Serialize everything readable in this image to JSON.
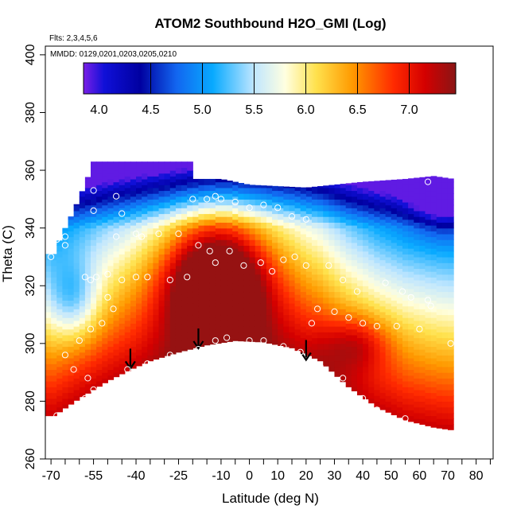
{
  "chart_data": {
    "type": "heatmap",
    "title": "ATOM2 Southbound H2O_GMI (Log)",
    "flights_note": "Flts: 2,3,4,5,6",
    "dates_note": "MMDD: 0129,0201,0203,0205,0210",
    "xlabel": "Latitude (deg N)",
    "ylabel": "Theta (C)",
    "xlim": [
      -72,
      86
    ],
    "ylim": [
      260,
      403
    ],
    "x_ticks_major": [
      -70,
      -55,
      -40,
      -25,
      -10,
      0,
      10,
      20,
      30,
      40,
      50,
      60,
      70,
      80
    ],
    "x_tick_labels": [
      "-70",
      "-55",
      "-40",
      "-25",
      "-10",
      "0",
      "10",
      "20",
      "30",
      "40",
      "50",
      "60",
      "70",
      "80"
    ],
    "x_ticks_minor": [
      -65,
      -60,
      -50,
      -45,
      -35,
      -30,
      -20,
      -15,
      -5,
      5,
      15,
      25,
      35,
      45,
      55,
      65,
      75,
      85
    ],
    "y_ticks": [
      260,
      280,
      300,
      320,
      340,
      360,
      380,
      400
    ],
    "y_tick_labels": [
      "260",
      "280",
      "300",
      "320",
      "340",
      "360",
      "380",
      "400"
    ],
    "colorbar": {
      "range": [
        3.85,
        7.45
      ],
      "ticks": [
        4.0,
        4.5,
        5.0,
        5.5,
        6.0,
        6.5,
        7.0
      ],
      "tick_labels": [
        "4.0",
        "4.5",
        "5.0",
        "5.5",
        "6.0",
        "6.5",
        "7.0"
      ],
      "divider_values": [
        4.5,
        5.0,
        5.5,
        6.0,
        6.5,
        7.0
      ],
      "color_stops": [
        {
          "v": 3.85,
          "c": "#7a1fe6"
        },
        {
          "v": 4.05,
          "c": "#1010d8"
        },
        {
          "v": 4.4,
          "c": "#0000a0"
        },
        {
          "v": 4.75,
          "c": "#1266f0"
        },
        {
          "v": 5.1,
          "c": "#08aaff"
        },
        {
          "v": 5.5,
          "c": "#bfe6ff"
        },
        {
          "v": 5.8,
          "c": "#ffffe0"
        },
        {
          "v": 6.1,
          "c": "#ffe14d"
        },
        {
          "v": 6.45,
          "c": "#ff9a00"
        },
        {
          "v": 6.85,
          "c": "#ff2a00"
        },
        {
          "v": 7.15,
          "c": "#d40000"
        },
        {
          "v": 7.45,
          "c": "#8a1515"
        }
      ]
    },
    "data_region": {
      "lat_extent": [
        -72,
        72
      ],
      "bottom_boundary": [
        [
          -69,
          275
        ],
        [
          -60,
          281
        ],
        [
          -50,
          287
        ],
        [
          -42,
          291
        ],
        [
          -35,
          294
        ],
        [
          -25,
          297
        ],
        [
          -15,
          299.5
        ],
        [
          -5,
          301
        ],
        [
          5,
          300.5
        ],
        [
          15,
          298.5
        ],
        [
          25,
          294
        ],
        [
          35,
          285
        ],
        [
          45,
          278
        ],
        [
          55,
          273.5
        ],
        [
          65,
          271
        ],
        [
          72,
          270
        ]
      ],
      "top_boundary": [
        [
          -69,
          331
        ],
        [
          -66,
          338
        ],
        [
          -62,
          346
        ],
        [
          -58,
          355
        ],
        [
          -55,
          363
        ],
        [
          -50,
          363
        ],
        [
          -30,
          363
        ],
        [
          -20,
          363
        ],
        [
          -19,
          357
        ],
        [
          -10,
          357
        ],
        [
          0,
          355
        ],
        [
          20,
          354
        ],
        [
          40,
          356
        ],
        [
          55,
          357
        ],
        [
          65,
          358
        ],
        [
          72,
          357
        ]
      ]
    },
    "mean_field": {
      "note": "Log H2O as a function of latitude and theta: moist (red) near the low-latitude surface, dry (blue/violet) aloft and at high latitudes",
      "base": 7.2,
      "minimum": 3.9,
      "maximum": 7.4
    },
    "arrows": [
      {
        "lat": -42,
        "theta": 296
      },
      {
        "lat": -18,
        "theta": 303
      },
      {
        "lat": 20,
        "theta": 299
      }
    ],
    "observation_points": [
      {
        "lat": -55,
        "theta": 353
      },
      {
        "lat": -47,
        "theta": 351
      },
      {
        "lat": -55,
        "theta": 346
      },
      {
        "lat": -45,
        "theta": 345
      },
      {
        "lat": -65,
        "theta": 337
      },
      {
        "lat": -68,
        "theta": 336
      },
      {
        "lat": -47,
        "theta": 337
      },
      {
        "lat": -40,
        "theta": 338
      },
      {
        "lat": -38,
        "theta": 337
      },
      {
        "lat": -32,
        "theta": 338
      },
      {
        "lat": -25,
        "theta": 338
      },
      {
        "lat": -65,
        "theta": 334
      },
      {
        "lat": -70,
        "theta": 330
      },
      {
        "lat": -58,
        "theta": 323
      },
      {
        "lat": -56,
        "theta": 322
      },
      {
        "lat": -54,
        "theta": 323
      },
      {
        "lat": -50,
        "theta": 324
      },
      {
        "lat": -45,
        "theta": 322
      },
      {
        "lat": -40,
        "theta": 323
      },
      {
        "lat": -36,
        "theta": 323
      },
      {
        "lat": -28,
        "theta": 322
      },
      {
        "lat": -22,
        "theta": 323
      },
      {
        "lat": -18,
        "theta": 334
      },
      {
        "lat": -14,
        "theta": 332
      },
      {
        "lat": -12,
        "theta": 328
      },
      {
        "lat": -7,
        "theta": 332
      },
      {
        "lat": -2,
        "theta": 327
      },
      {
        "lat": 4,
        "theta": 328
      },
      {
        "lat": 8,
        "theta": 325
      },
      {
        "lat": 12,
        "theta": 329
      },
      {
        "lat": 16,
        "theta": 330
      },
      {
        "lat": 20,
        "theta": 327
      },
      {
        "lat": 28,
        "theta": 327
      },
      {
        "lat": 33,
        "theta": 322
      },
      {
        "lat": 48,
        "theta": 321
      },
      {
        "lat": 54,
        "theta": 318
      },
      {
        "lat": 38,
        "theta": 318
      },
      {
        "lat": 57,
        "theta": 316
      },
      {
        "lat": 63,
        "theta": 315
      },
      {
        "lat": 64,
        "theta": 313
      },
      {
        "lat": 30,
        "theta": 311
      },
      {
        "lat": 35,
        "theta": 309
      },
      {
        "lat": 40,
        "theta": 307
      },
      {
        "lat": 45,
        "theta": 306
      },
      {
        "lat": 52,
        "theta": 306
      },
      {
        "lat": 60,
        "theta": 305
      },
      {
        "lat": 24,
        "theta": 312
      },
      {
        "lat": 22,
        "theta": 307
      },
      {
        "lat": -50,
        "theta": 316
      },
      {
        "lat": -48,
        "theta": 312
      },
      {
        "lat": -52,
        "theta": 307
      },
      {
        "lat": -56,
        "theta": 305
      },
      {
        "lat": -60,
        "theta": 301
      },
      {
        "lat": -65,
        "theta": 296
      },
      {
        "lat": -62,
        "theta": 291
      },
      {
        "lat": -57,
        "theta": 288
      },
      {
        "lat": -43,
        "theta": 291
      },
      {
        "lat": -36,
        "theta": 293
      },
      {
        "lat": -28,
        "theta": 296
      },
      {
        "lat": -18,
        "theta": 298
      },
      {
        "lat": -12,
        "theta": 301
      },
      {
        "lat": -8,
        "theta": 302
      },
      {
        "lat": 0,
        "theta": 301
      },
      {
        "lat": 5,
        "theta": 301
      },
      {
        "lat": 12,
        "theta": 299
      },
      {
        "lat": 18,
        "theta": 297
      },
      {
        "lat": 25,
        "theta": 292
      },
      {
        "lat": 33,
        "theta": 288
      },
      {
        "lat": 40,
        "theta": 281
      },
      {
        "lat": 45,
        "theta": 277
      },
      {
        "lat": 50,
        "theta": 274
      },
      {
        "lat": 55,
        "theta": 274
      },
      {
        "lat": -68,
        "theta": 275
      },
      {
        "lat": -58,
        "theta": 281
      },
      {
        "lat": -55,
        "theta": 284
      },
      {
        "lat": 71,
        "theta": 300
      },
      {
        "lat": 63,
        "theta": 356
      },
      {
        "lat": 5,
        "theta": 348
      },
      {
        "lat": 10,
        "theta": 347
      },
      {
        "lat": 15,
        "theta": 344
      },
      {
        "lat": 0,
        "theta": 347
      },
      {
        "lat": -5,
        "theta": 349
      },
      {
        "lat": -15,
        "theta": 350
      },
      {
        "lat": -12,
        "theta": 351
      },
      {
        "lat": -10,
        "theta": 350
      },
      {
        "lat": -20,
        "theta": 350
      },
      {
        "lat": 20,
        "theta": 343
      }
    ]
  }
}
